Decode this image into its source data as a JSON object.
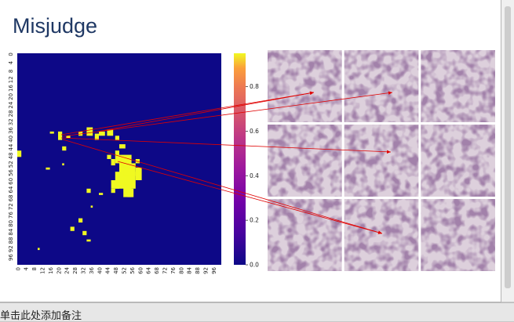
{
  "slide": {
    "title": "Misjudge"
  },
  "notes": {
    "placeholder": "单击此处添加备注"
  },
  "figure": {
    "heatmap": {
      "x_ticks": [
        "0",
        "4",
        "8",
        "12",
        "16",
        "20",
        "24",
        "28",
        "32",
        "36",
        "40",
        "44",
        "48",
        "52",
        "56",
        "60",
        "64",
        "68",
        "72",
        "76",
        "80",
        "84",
        "88",
        "92",
        "96"
      ],
      "y_ticks": [
        "0",
        "4",
        "8",
        "12",
        "16",
        "20",
        "24",
        "28",
        "32",
        "36",
        "40",
        "44",
        "48",
        "52",
        "56",
        "60",
        "64",
        "68",
        "72",
        "76",
        "80",
        "84",
        "88",
        "92",
        "96"
      ],
      "grid_size": 100,
      "background_color": "#0d0887",
      "hot_color": "#f0f921"
    },
    "colorbar": {
      "ticks": [
        "0.0",
        "0.2",
        "0.4",
        "0.6",
        "0.8"
      ],
      "tick_values": [
        0.0,
        0.2,
        0.4,
        0.6,
        0.8
      ],
      "vmax": 0.95,
      "colormap": "plasma"
    },
    "patch_grid": {
      "rows": 3,
      "cols": 3
    },
    "arrow_color": "#e00000"
  }
}
